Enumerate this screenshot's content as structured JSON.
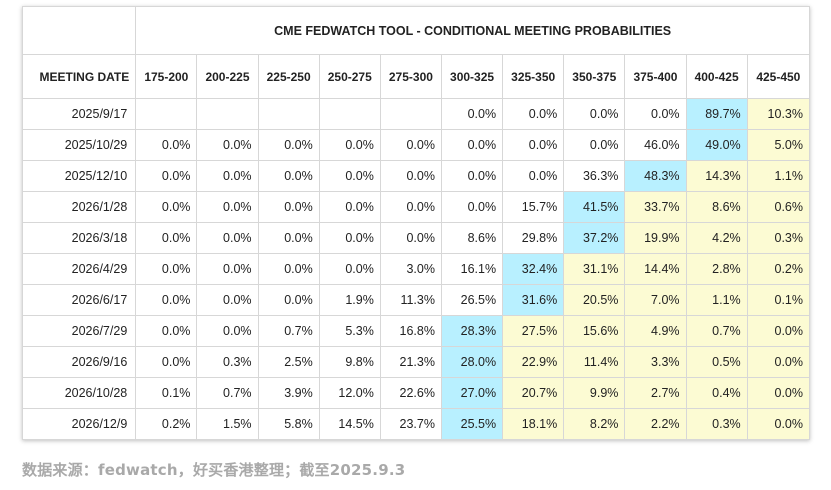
{
  "title": "CME FEDWATCH TOOL - CONDITIONAL MEETING PROBABILITIES",
  "date_header": "MEETING DATE",
  "ranges": [
    "175-200",
    "200-225",
    "225-250",
    "250-275",
    "275-300",
    "300-325",
    "325-350",
    "350-375",
    "375-400",
    "400-425",
    "425-450"
  ],
  "rows": [
    {
      "date": "2025/9/17",
      "values": [
        "",
        "",
        "",
        "",
        "",
        "0.0%",
        "0.0%",
        "0.0%",
        "0.0%",
        "89.7%",
        "10.3%"
      ],
      "max": 9
    },
    {
      "date": "2025/10/29",
      "values": [
        "0.0%",
        "0.0%",
        "0.0%",
        "0.0%",
        "0.0%",
        "0.0%",
        "0.0%",
        "0.0%",
        "46.0%",
        "49.0%",
        "5.0%"
      ],
      "max": 9
    },
    {
      "date": "2025/12/10",
      "values": [
        "0.0%",
        "0.0%",
        "0.0%",
        "0.0%",
        "0.0%",
        "0.0%",
        "0.0%",
        "36.3%",
        "48.3%",
        "14.3%",
        "1.1%"
      ],
      "max": 8
    },
    {
      "date": "2026/1/28",
      "values": [
        "0.0%",
        "0.0%",
        "0.0%",
        "0.0%",
        "0.0%",
        "0.0%",
        "15.7%",
        "41.5%",
        "33.7%",
        "8.6%",
        "0.6%"
      ],
      "max": 7
    },
    {
      "date": "2026/3/18",
      "values": [
        "0.0%",
        "0.0%",
        "0.0%",
        "0.0%",
        "0.0%",
        "8.6%",
        "29.8%",
        "37.2%",
        "19.9%",
        "4.2%",
        "0.3%"
      ],
      "max": 7
    },
    {
      "date": "2026/4/29",
      "values": [
        "0.0%",
        "0.0%",
        "0.0%",
        "0.0%",
        "3.0%",
        "16.1%",
        "32.4%",
        "31.1%",
        "14.4%",
        "2.8%",
        "0.2%"
      ],
      "max": 6
    },
    {
      "date": "2026/6/17",
      "values": [
        "0.0%",
        "0.0%",
        "0.0%",
        "1.9%",
        "11.3%",
        "26.5%",
        "31.6%",
        "20.5%",
        "7.0%",
        "1.1%",
        "0.1%"
      ],
      "max": 6
    },
    {
      "date": "2026/7/29",
      "values": [
        "0.0%",
        "0.0%",
        "0.7%",
        "5.3%",
        "16.8%",
        "28.3%",
        "27.5%",
        "15.6%",
        "4.9%",
        "0.7%",
        "0.0%"
      ],
      "max": 5
    },
    {
      "date": "2026/9/16",
      "values": [
        "0.0%",
        "0.3%",
        "2.5%",
        "9.8%",
        "21.3%",
        "28.0%",
        "22.9%",
        "11.4%",
        "3.3%",
        "0.5%",
        "0.0%"
      ],
      "max": 5
    },
    {
      "date": "2026/10/28",
      "values": [
        "0.1%",
        "0.7%",
        "3.9%",
        "12.0%",
        "22.6%",
        "27.0%",
        "20.7%",
        "9.9%",
        "2.7%",
        "0.4%",
        "0.0%"
      ],
      "max": 5
    },
    {
      "date": "2026/12/9",
      "values": [
        "0.2%",
        "1.5%",
        "5.8%",
        "14.5%",
        "23.7%",
        "25.5%",
        "18.1%",
        "8.2%",
        "2.2%",
        "0.3%",
        "0.0%"
      ],
      "max": 5
    }
  ],
  "colors": {
    "highlight": "#b8f0ff",
    "current_range": "#fcfbd3",
    "border": "#d7d7d7"
  },
  "current_range_start_index": 9,
  "source": "数据来源：fedwatch，好买香港整理；截至2025.9.3"
}
